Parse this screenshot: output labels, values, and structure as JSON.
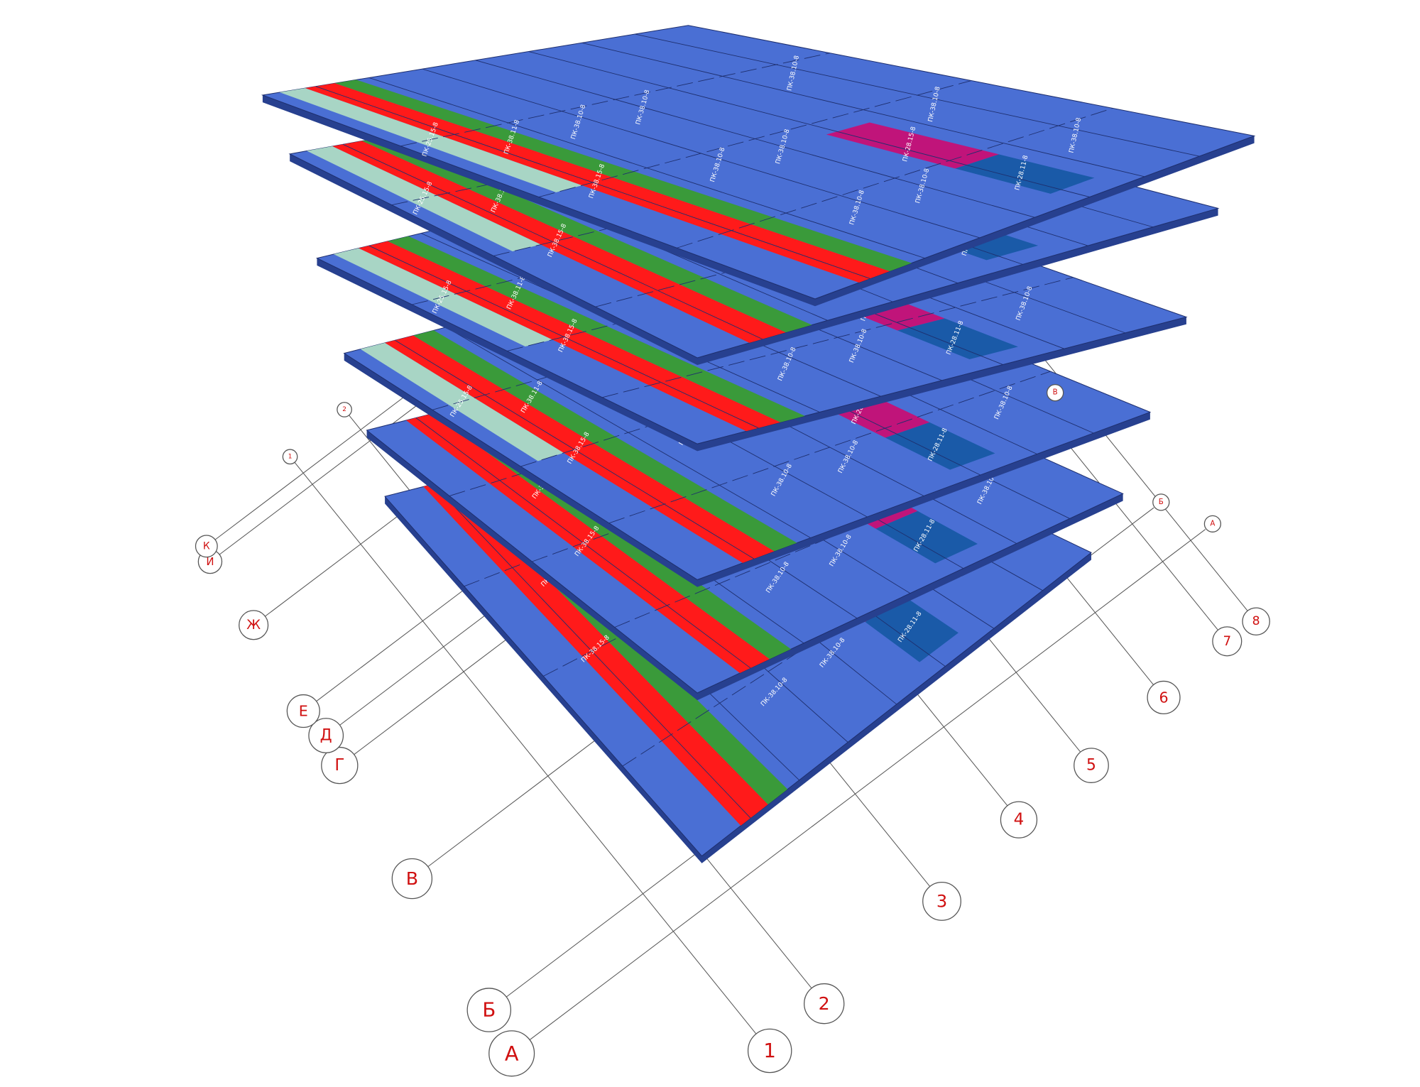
{
  "axes": {
    "numbers": [
      "1",
      "2",
      "3",
      "4",
      "5",
      "6",
      "7",
      "8"
    ],
    "letters": [
      "А",
      "Б",
      "В",
      "Г",
      "Д",
      "Е",
      "Ж",
      "И",
      "К"
    ]
  },
  "slab_types": [
    "ПК-38.10-8",
    "ПК-38.15-8",
    "ПК-38.11-8",
    "ПК-28.15-8",
    "ПК-28.11-8",
    "ПК-25.15-8"
  ]
}
